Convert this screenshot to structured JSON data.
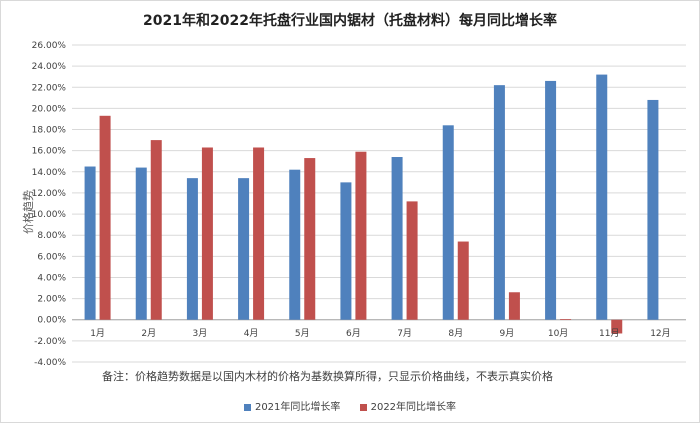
{
  "chart_data": {
    "type": "bar",
    "title": "2021年和2022年托盘行业国内锯材（托盘材料）每月同比增长率",
    "ylabel": "价格趋势",
    "categories": [
      "1月",
      "2月",
      "3月",
      "4月",
      "5月",
      "6月",
      "7月",
      "8月",
      "9月",
      "10月",
      "11月",
      "12月"
    ],
    "series": [
      {
        "name": "2021年同比增长率",
        "color": "#4f81bd",
        "values": [
          14.5,
          14.4,
          13.4,
          13.4,
          14.2,
          13.0,
          15.4,
          18.4,
          22.2,
          22.6,
          23.2,
          20.8
        ]
      },
      {
        "name": "2022年同比增长率",
        "color": "#c0504d",
        "values": [
          19.3,
          17.0,
          16.3,
          16.3,
          15.3,
          15.9,
          11.2,
          7.4,
          2.6,
          0.05,
          -1.3,
          null
        ]
      }
    ],
    "ylim": [
      -4,
      26
    ],
    "ytick_step": 2,
    "ytick_labels": [
      "-4.00%",
      "-2.00%",
      "0.00%",
      "2.00%",
      "4.00%",
      "6.00%",
      "8.00%",
      "10.00%",
      "12.00%",
      "14.00%",
      "16.00%",
      "18.00%",
      "20.00%",
      "22.00%",
      "24.00%",
      "26.00%"
    ],
    "grid": true,
    "legend": "bottom",
    "note": "备注：价格趋势数据是以国内木材的价格为基数换算所得，只显示价格曲线，不表示真实价格"
  }
}
